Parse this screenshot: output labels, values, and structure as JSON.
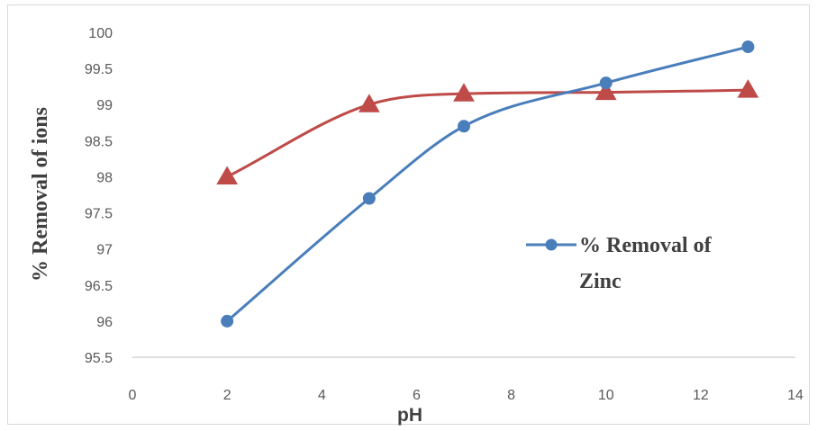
{
  "chart_data": {
    "type": "line",
    "title": "",
    "xlabel": "pH",
    "ylabel": "% Removal of ions",
    "xlim": [
      0,
      14
    ],
    "ylim": [
      95.5,
      100
    ],
    "x_ticks": [
      0,
      2,
      4,
      6,
      8,
      10,
      12,
      14
    ],
    "y_ticks": [
      95.5,
      96,
      96.5,
      97,
      97.5,
      98,
      98.5,
      99,
      99.5,
      100
    ],
    "grid": false,
    "smooth": true,
    "legend_position": "right",
    "series": [
      {
        "name": "% Removal of Zinc",
        "color": "#4a7ebb",
        "marker": "circle",
        "x": [
          2,
          5,
          7,
          10,
          13
        ],
        "y": [
          96,
          97.7,
          98.7,
          99.3,
          99.8
        ]
      },
      {
        "color": "#be4b48",
        "marker": "triangle",
        "x": [
          2,
          5,
          7,
          10,
          13
        ],
        "y": [
          98,
          99,
          99.15,
          99.17,
          99.2
        ]
      }
    ]
  }
}
